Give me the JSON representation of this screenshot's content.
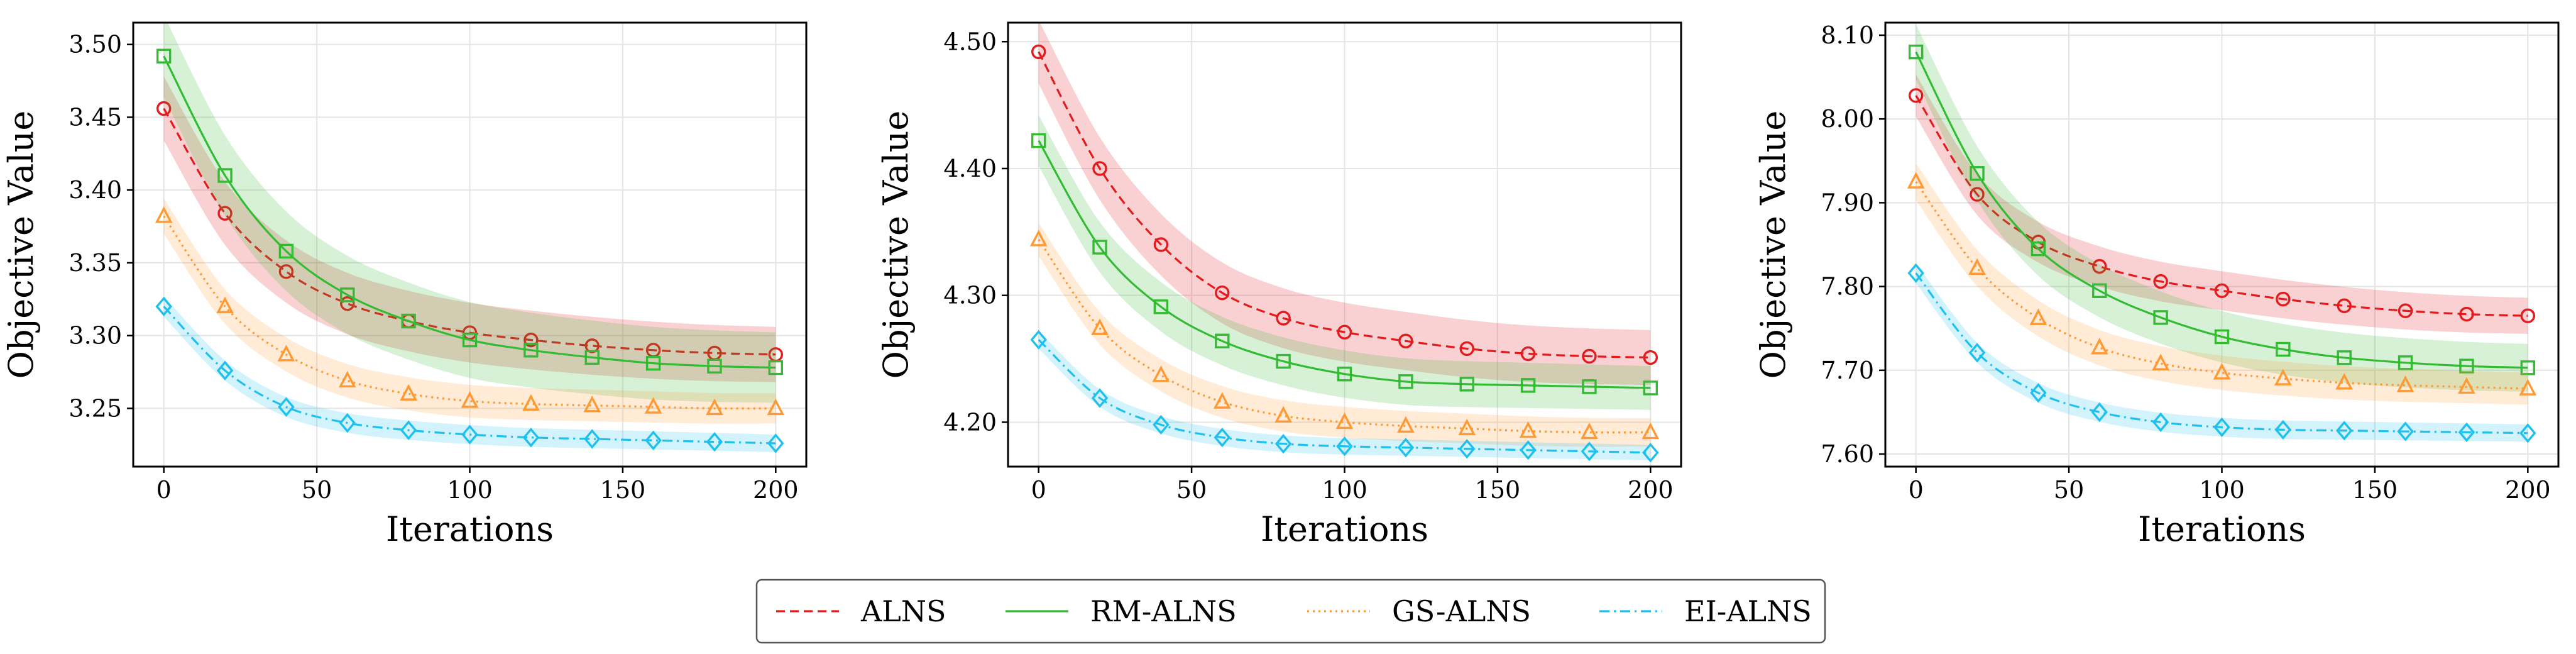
{
  "chart_data": [
    {
      "type": "line",
      "xlabel": "Iterations",
      "ylabel": "Objective Value",
      "xlim": [
        -10,
        210
      ],
      "ylim": [
        3.21,
        3.515
      ],
      "xticks": [
        0,
        50,
        100,
        150,
        200
      ],
      "yticks": [
        3.25,
        3.3,
        3.35,
        3.4,
        3.45,
        3.5
      ],
      "ytick_labels": [
        "3.25",
        "3.30",
        "3.35",
        "3.40",
        "3.45",
        "3.50"
      ],
      "grid": true,
      "x": [
        0,
        20,
        40,
        60,
        80,
        100,
        120,
        140,
        160,
        180,
        200
      ],
      "series": [
        {
          "name": "ALNS",
          "values": [
            3.456,
            3.384,
            3.344,
            3.322,
            3.31,
            3.302,
            3.297,
            3.293,
            3.29,
            3.288,
            3.287
          ],
          "band": 0.022
        },
        {
          "name": "RM-ALNS",
          "values": [
            3.492,
            3.41,
            3.358,
            3.328,
            3.31,
            3.297,
            3.29,
            3.285,
            3.281,
            3.279,
            3.278
          ],
          "band": 0.028
        },
        {
          "name": "GS-ALNS",
          "values": [
            3.382,
            3.32,
            3.287,
            3.269,
            3.26,
            3.255,
            3.253,
            3.252,
            3.251,
            3.25,
            3.25
          ],
          "band": 0.012
        },
        {
          "name": "EI-ALNS",
          "values": [
            3.32,
            3.276,
            3.251,
            3.24,
            3.235,
            3.232,
            3.23,
            3.229,
            3.228,
            3.227,
            3.226
          ],
          "band": 0.007
        }
      ]
    },
    {
      "type": "line",
      "xlabel": "Iterations",
      "ylabel": "Objective Value",
      "xlim": [
        -10,
        210
      ],
      "ylim": [
        4.165,
        4.515
      ],
      "xticks": [
        0,
        50,
        100,
        150,
        200
      ],
      "yticks": [
        4.2,
        4.3,
        4.4,
        4.5
      ],
      "ytick_labels": [
        "4.20",
        "4.30",
        "4.40",
        "4.50"
      ],
      "grid": true,
      "x": [
        0,
        20,
        40,
        60,
        80,
        100,
        120,
        140,
        160,
        180,
        200
      ],
      "series": [
        {
          "name": "ALNS",
          "values": [
            4.492,
            4.4,
            4.34,
            4.302,
            4.282,
            4.271,
            4.264,
            4.258,
            4.254,
            4.252,
            4.251
          ],
          "band": 0.025
        },
        {
          "name": "RM-ALNS",
          "values": [
            4.422,
            4.338,
            4.291,
            4.264,
            4.248,
            4.238,
            4.232,
            4.23,
            4.229,
            4.228,
            4.227
          ],
          "band": 0.02
        },
        {
          "name": "GS-ALNS",
          "values": [
            4.344,
            4.274,
            4.237,
            4.216,
            4.205,
            4.2,
            4.197,
            4.195,
            4.193,
            4.192,
            4.192
          ],
          "band": 0.013
        },
        {
          "name": "EI-ALNS",
          "values": [
            4.265,
            4.219,
            4.198,
            4.188,
            4.183,
            4.181,
            4.18,
            4.179,
            4.178,
            4.177,
            4.176
          ],
          "band": 0.007
        }
      ]
    },
    {
      "type": "line",
      "xlabel": "Iterations",
      "ylabel": "Objective Value",
      "xlim": [
        -10,
        210
      ],
      "ylim": [
        7.585,
        8.115
      ],
      "xticks": [
        0,
        50,
        100,
        150,
        200
      ],
      "yticks": [
        7.6,
        7.7,
        7.8,
        7.9,
        8.0,
        8.1
      ],
      "ytick_labels": [
        "7.60",
        "7.70",
        "7.80",
        "7.90",
        "8.00",
        "8.10"
      ],
      "grid": true,
      "x": [
        0,
        20,
        40,
        60,
        80,
        100,
        120,
        140,
        160,
        180,
        200
      ],
      "series": [
        {
          "name": "ALNS",
          "values": [
            8.028,
            7.91,
            7.853,
            7.824,
            7.806,
            7.795,
            7.785,
            7.777,
            7.771,
            7.767,
            7.765
          ],
          "band": 0.025
        },
        {
          "name": "RM-ALNS",
          "values": [
            8.08,
            7.935,
            7.845,
            7.795,
            7.763,
            7.74,
            7.725,
            7.715,
            7.709,
            7.705,
            7.703
          ],
          "band": 0.033
        },
        {
          "name": "GS-ALNS",
          "values": [
            7.925,
            7.822,
            7.762,
            7.727,
            7.708,
            7.697,
            7.69,
            7.685,
            7.682,
            7.68,
            7.678
          ],
          "band": 0.022
        },
        {
          "name": "EI-ALNS",
          "values": [
            7.816,
            7.721,
            7.673,
            7.65,
            7.638,
            7.632,
            7.629,
            7.628,
            7.627,
            7.626,
            7.625
          ],
          "band": 0.012
        }
      ]
    }
  ],
  "legend": {
    "position": "bottom-center",
    "entries": [
      {
        "name": "ALNS",
        "color": "#e41a1c",
        "dash": "dashed",
        "marker": "circle"
      },
      {
        "name": "RM-ALNS",
        "color": "#33bb33",
        "dash": "solid",
        "marker": "square"
      },
      {
        "name": "GS-ALNS",
        "color": "#ff9933",
        "dash": "dotted",
        "marker": "triangle"
      },
      {
        "name": "EI-ALNS",
        "color": "#1ec0ee",
        "dash": "dashdot",
        "marker": "diamond"
      }
    ]
  }
}
